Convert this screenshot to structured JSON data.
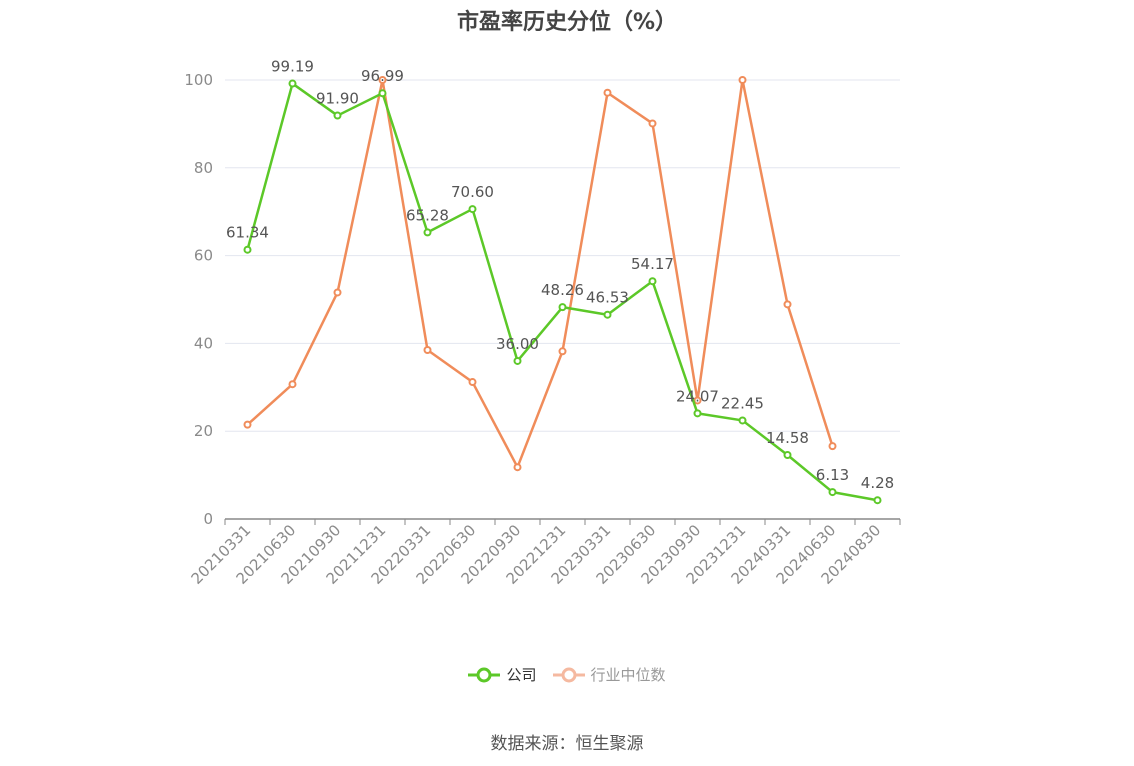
{
  "chart_data": {
    "type": "line",
    "title": "市盈率历史分位（%）",
    "categories": [
      "20210331",
      "20210630",
      "20210930",
      "20211231",
      "20220331",
      "20220630",
      "20220930",
      "20221231",
      "20230331",
      "20230630",
      "20230930",
      "20231231",
      "20240331",
      "20240630",
      "20240830"
    ],
    "series": [
      {
        "name": "公司",
        "color": "#5cc828",
        "values": [
          61.34,
          99.19,
          91.9,
          96.99,
          65.28,
          70.6,
          36.0,
          48.26,
          46.53,
          54.17,
          24.07,
          22.45,
          14.58,
          6.13,
          4.28
        ],
        "labels": [
          "61.34",
          "99.19",
          "91.90",
          "96.99",
          "65.28",
          "70.60",
          "36.00",
          "48.26",
          "46.53",
          "54.17",
          "24.07",
          "22.45",
          "14.58",
          "6.13",
          "4.28"
        ]
      },
      {
        "name": "行业中位数",
        "color": "#f08c5a",
        "values": [
          21.5,
          30.7,
          51.6,
          100.0,
          38.5,
          31.2,
          11.8,
          38.2,
          97.1,
          90.1,
          27.0,
          100.0,
          48.9,
          16.6,
          null
        ]
      }
    ],
    "yticks": [
      0,
      20,
      40,
      60,
      80,
      100
    ],
    "ylim": [
      0,
      100
    ],
    "grid": true,
    "legend_position": "bottom"
  },
  "source": "数据来源：恒生聚源"
}
